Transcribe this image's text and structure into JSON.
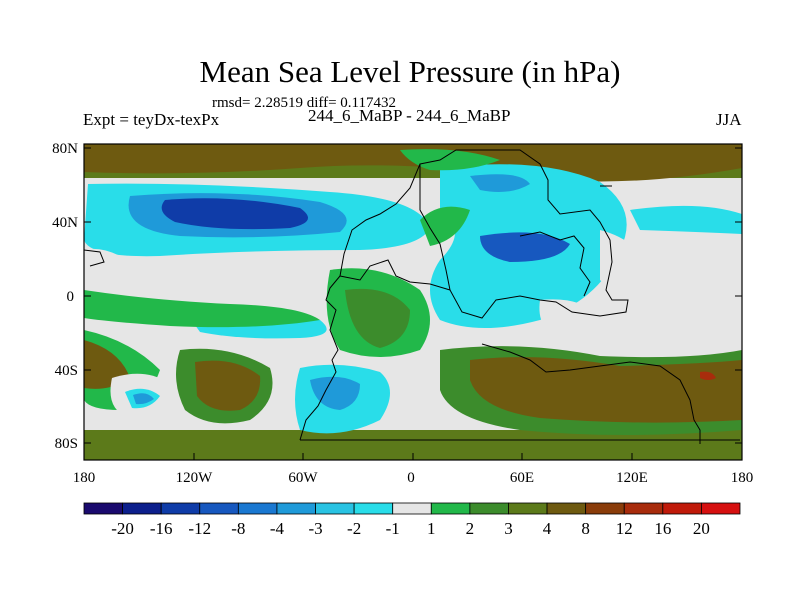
{
  "header": {
    "title": "Mean Sea Level Pressure (in hPa)",
    "stats": "rmsd= 2.28519 diff= 0.117432",
    "left_label": "Expt = teyDx-texPx",
    "center_label": "244_6_MaBP - 244_6_MaBP",
    "right_label": "JJA"
  },
  "map": {
    "lat_ticks": [
      "80N",
      "40N",
      "0",
      "40S",
      "80S"
    ],
    "lon_ticks": [
      "180",
      "120W",
      "60W",
      "0",
      "60E",
      "120E",
      "180"
    ],
    "land_outline": "paleogeographic coastlines (black line)"
  },
  "colorbar": {
    "labels": [
      "-20",
      "-16",
      "-12",
      "-8",
      "-4",
      "-3",
      "-2",
      "-1",
      "1",
      "2",
      "3",
      "4",
      "8",
      "12",
      "16",
      "20"
    ],
    "colors": [
      "#1a0a6e",
      "#0c1f8c",
      "#0f3ca8",
      "#1758bf",
      "#1a78d1",
      "#1f9ad9",
      "#29c3e3",
      "#29dde9",
      "#e6e6e6",
      "#22b84a",
      "#3c8c2c",
      "#5c7a1a",
      "#6e5a10",
      "#8a3c0a",
      "#a82c0c",
      "#c01a0a",
      "#d61010"
    ]
  }
}
